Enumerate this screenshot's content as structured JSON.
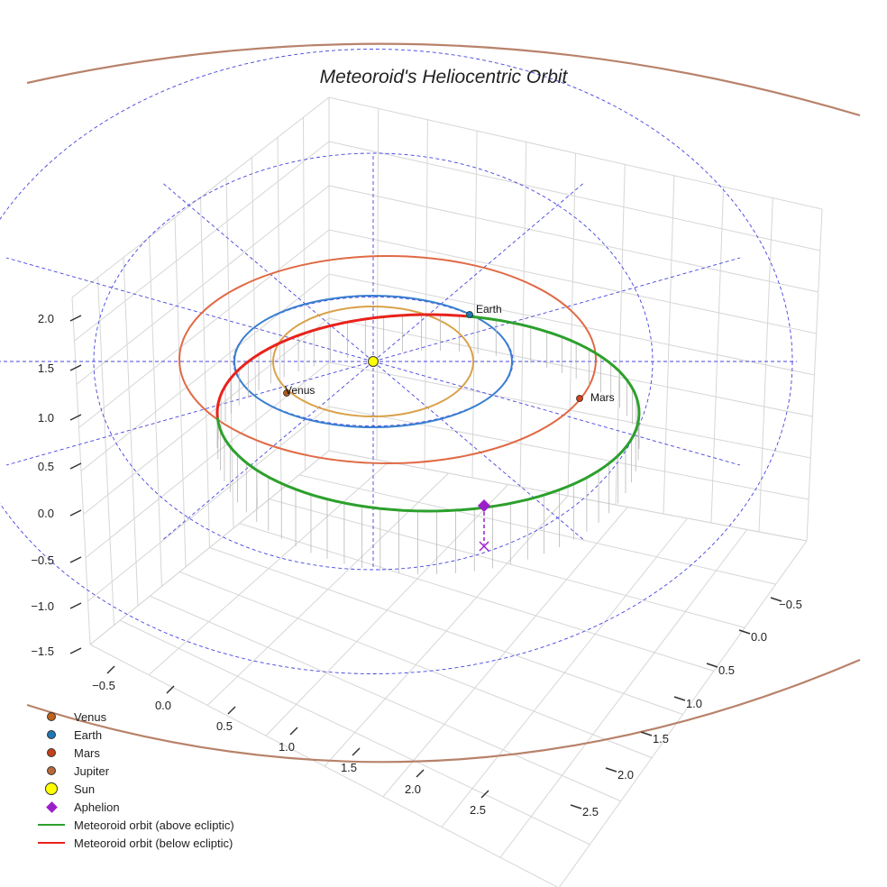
{
  "chart_data": {
    "type": "scatter",
    "projection": "3d",
    "title": "Meteoroid's Heliocentric Orbit",
    "axes": {
      "x": {
        "ticks": [
          "−0.5",
          "0.0",
          "0.5",
          "1.0",
          "1.5",
          "2.0",
          "2.5"
        ],
        "range": [
          -0.8,
          2.8
        ]
      },
      "y": {
        "ticks": [
          "−0.5",
          "0.0",
          "0.5",
          "1.0",
          "1.5",
          "2.0",
          "2.5"
        ],
        "range": [
          -0.8,
          2.8
        ]
      },
      "z": {
        "ticks": [
          "2.0",
          "1.5",
          "1.0",
          "0.5",
          "0.0",
          "−0.5",
          "−1.0",
          "−1.5"
        ],
        "range": [
          -1.7,
          2.2
        ]
      }
    },
    "bodies": [
      {
        "name": "Venus",
        "label": "Venus",
        "orbit_radius_au": 0.72,
        "color": "#b05a1e",
        "orbit_color": "#d9a24a"
      },
      {
        "name": "Earth",
        "label": "Earth",
        "orbit_radius_au": 1.0,
        "color": "#1f77b4",
        "orbit_color": "#3a7fd0"
      },
      {
        "name": "Mars",
        "label": "Mars",
        "orbit_radius_au": 1.52,
        "color": "#d9411a",
        "orbit_color": "#e06a45"
      },
      {
        "name": "Jupiter",
        "orbit_radius_au": 5.2,
        "color": "#b07a5a",
        "orbit_color": "#b8826a"
      },
      {
        "name": "Sun",
        "color": "#ffff00"
      }
    ],
    "meteoroid_orbit": {
      "segments": [
        {
          "name": "Meteoroid orbit (above ecliptic)",
          "color": "#2ca02c"
        },
        {
          "name": "Meteoroid orbit (below ecliptic)",
          "color": "#e8221b"
        }
      ]
    },
    "aphelion": {
      "name": "Aphelion",
      "color": "#9b1fc9"
    },
    "ecliptic_grid": {
      "style": "dashed",
      "color": "#4444dd",
      "ring_radii_au": [
        1.0,
        2.0,
        3.0
      ]
    }
  },
  "legend": [
    {
      "label": "Venus",
      "kind": "dot",
      "color": "#c0621c"
    },
    {
      "label": "Earth",
      "kind": "dot",
      "color": "#1f77b4"
    },
    {
      "label": "Mars",
      "kind": "dot",
      "color": "#c4401a"
    },
    {
      "label": "Jupiter",
      "kind": "dot",
      "color": "#b8683a"
    },
    {
      "label": "Sun",
      "kind": "dot-big",
      "color": "#ffff00"
    },
    {
      "label": "Aphelion",
      "kind": "diamond",
      "color": "#9b1fc9"
    },
    {
      "label": "Meteoroid orbit (above ecliptic)",
      "kind": "line",
      "color": "#2ca02c"
    },
    {
      "label": "Meteoroid orbit (below ecliptic)",
      "kind": "line",
      "color": "#e8221b"
    }
  ]
}
